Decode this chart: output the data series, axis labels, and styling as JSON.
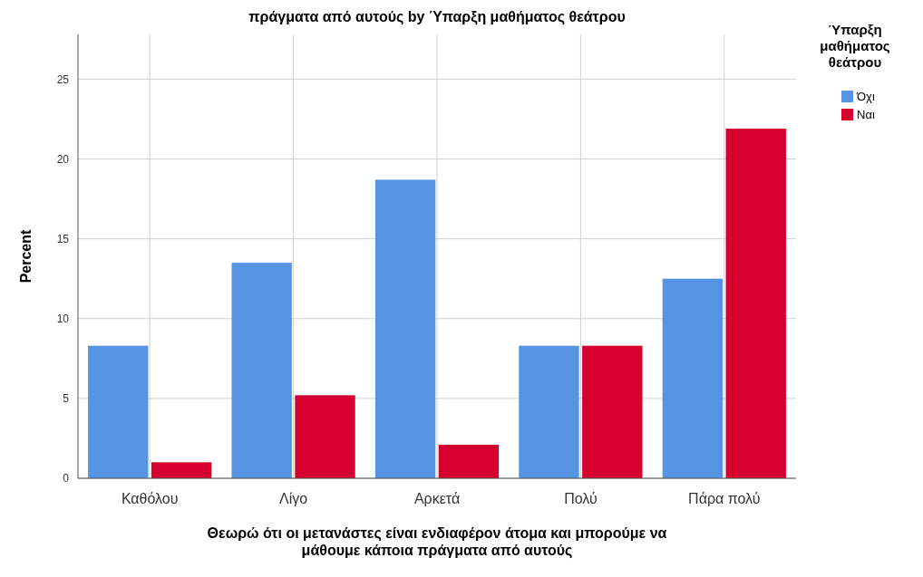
{
  "chart_data": {
    "type": "bar",
    "title": "πράγματα από αυτούς by Ύπαρξη μαθήματος θεάτρου",
    "xlabel": "Θεωρώ ότι οι μετανάστες είναι ενδιαφέρον άτομα και μπορούμε να μάθουμε κάποια πράγματα από αυτούς",
    "ylabel": "Percent",
    "legend_title": "Ύπαρξη μαθήματος θεάτρου",
    "categories": [
      "Καθόλου",
      "Λίγο",
      "Αρκετά",
      "Πολύ",
      "Πάρα πολύ"
    ],
    "series": [
      {
        "name": "Όχι",
        "color": "#5593e3",
        "values": [
          8.3,
          13.5,
          18.7,
          8.3,
          12.5
        ]
      },
      {
        "name": "Ναι",
        "color": "#d5002e",
        "values": [
          1.0,
          5.2,
          2.1,
          8.3,
          21.9
        ]
      }
    ],
    "ylim": [
      0,
      27.8
    ],
    "yticks": [
      0,
      5,
      10,
      15,
      20,
      25
    ],
    "grid": true,
    "legend": "right"
  }
}
